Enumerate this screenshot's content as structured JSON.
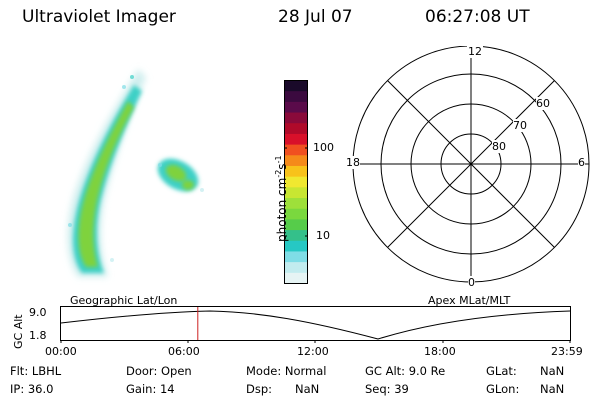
{
  "header": {
    "instrument": "Ultraviolet Imager",
    "date": "28 Jul 07",
    "time": "06:27:08 UT"
  },
  "colorbar": {
    "label": "photon cm",
    "label_sup1": "-2",
    "label_mid": "s",
    "label_sup2": "-1",
    "ticks": [
      "100",
      "10"
    ],
    "colors": [
      "#1a0a2a",
      "#3b0a3f",
      "#5a0b4a",
      "#8a0a3a",
      "#b00a2a",
      "#d8102a",
      "#f05020",
      "#f58a1a",
      "#f8c21a",
      "#f0e830",
      "#c8e632",
      "#9ee03a",
      "#7ad83e",
      "#56cc4a",
      "#34c08a",
      "#26c8c4",
      "#7fdde6",
      "#c2ecef",
      "#e6f4f4"
    ]
  },
  "polar_plot": {
    "mlt_labels": {
      "top": "12",
      "left": "18",
      "right": "6",
      "bottom": "0"
    },
    "lat_labels": [
      "60",
      "70",
      "80"
    ]
  },
  "footprint": {
    "ylabel": "GC Alt",
    "y_ticks": [
      "9.0",
      "1.8"
    ],
    "left_label": "Geographic Lat/Lon",
    "right_label": "Apex MLat/MLT",
    "x_ticks": [
      "00:00",
      "06:00",
      "12:00",
      "18:00",
      "23:59"
    ],
    "marker_time_hours": 6.45,
    "marker_color": "#cc2020"
  },
  "status": {
    "flt": "Flt: LBHL",
    "door": "Door: Open",
    "mode": "Mode: Normal",
    "gc_alt": "GC Alt: 9.0 Re",
    "glat_label": "GLat:",
    "glat_value": "NaN",
    "ip": "IP: 36.0",
    "gain": "Gain: 14",
    "dsp_label": "Dsp:",
    "dsp_value": "NaN",
    "seq": "Seq: 39",
    "glon_label": "GLon:",
    "glon_value": "NaN"
  }
}
